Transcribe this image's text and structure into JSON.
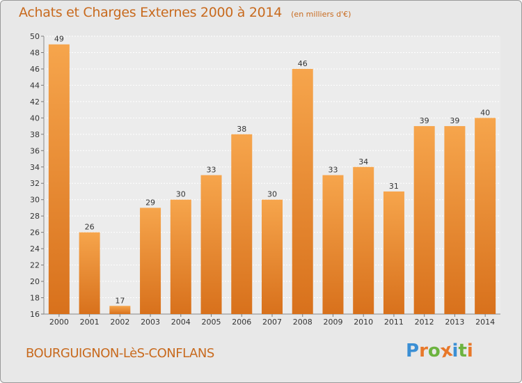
{
  "header": {
    "title": "Achats et Charges Externes 2000 à 2014",
    "subtitle": "(en milliers d'€)"
  },
  "footer": {
    "place": "BOURGUIGNON-LèS-CONFLANS",
    "brand": "Proxiti"
  },
  "colors": {
    "bar_light": "#f6a54c",
    "bar_dark": "#d8711c",
    "title": "#c86a1e",
    "background": "#e8e8e8",
    "brand_letters": [
      "#3b8fd4",
      "#e8782a",
      "#6cb33f",
      "#e8782a",
      "#3b8fd4",
      "#6cb33f",
      "#e8782a"
    ]
  },
  "chart_data": {
    "type": "bar",
    "categories": [
      "2000",
      "2001",
      "2002",
      "2003",
      "2004",
      "2005",
      "2006",
      "2007",
      "2008",
      "2009",
      "2010",
      "2011",
      "2012",
      "2013",
      "2014"
    ],
    "values": [
      49,
      26,
      17,
      29,
      30,
      33,
      38,
      30,
      46,
      33,
      34,
      31,
      39,
      39,
      40
    ],
    "ylim": [
      16,
      50
    ],
    "yticks": [
      16,
      18,
      20,
      22,
      24,
      26,
      28,
      30,
      32,
      34,
      36,
      38,
      40,
      42,
      44,
      46,
      48,
      50
    ],
    "grid": true,
    "legend": "none"
  }
}
